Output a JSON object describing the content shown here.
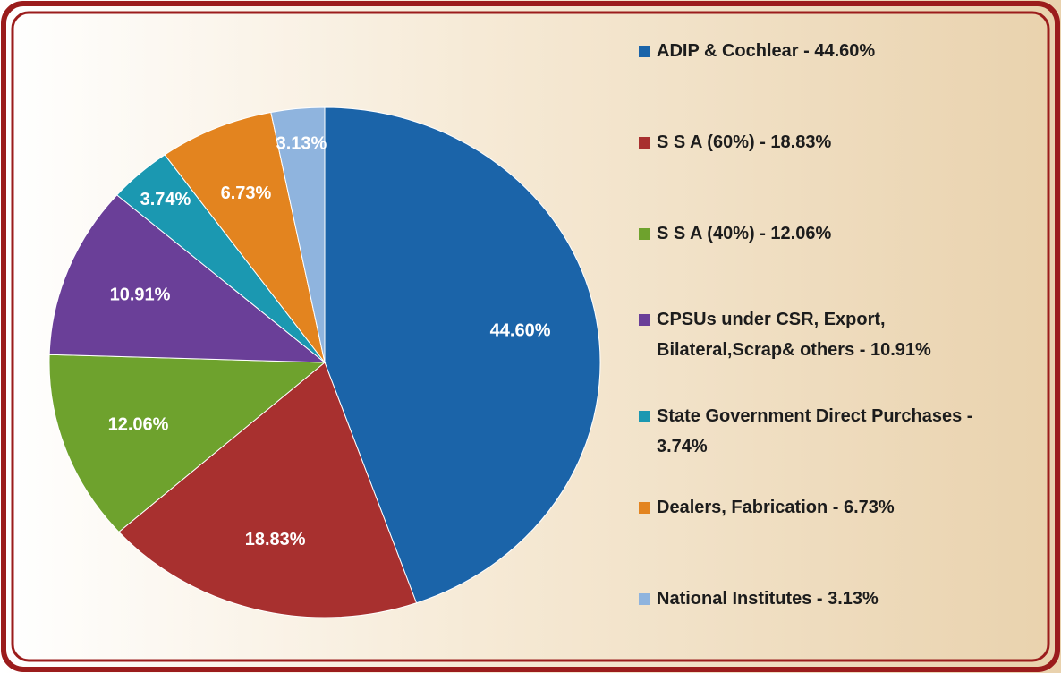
{
  "chart_data": {
    "type": "pie",
    "categories": [
      "ADIP & Cochlear  - 44.60%",
      "S S A (60%) - 18.83%",
      "S S A (40%) - 12.06%",
      "CPSUs under CSR, Export, Bilateral,Scrap& others   - 10.91%",
      "State Government Direct Purchases - 3.74%",
      "Dealers, Fabrication  - 6.73%",
      "National Institutes - 3.13%"
    ],
    "values": [
      44.6,
      18.83,
      12.06,
      10.91,
      3.74,
      6.73,
      3.13
    ],
    "value_labels": [
      "44.60%",
      "18.83%",
      "12.06%",
      "10.91%",
      "3.74%",
      "6.73%",
      "3.13%"
    ],
    "colors": [
      "#1b64a9",
      "#a8302f",
      "#6ea22d",
      "#6a3f98",
      "#1b98b1",
      "#e3841f",
      "#8fb4de"
    ]
  }
}
